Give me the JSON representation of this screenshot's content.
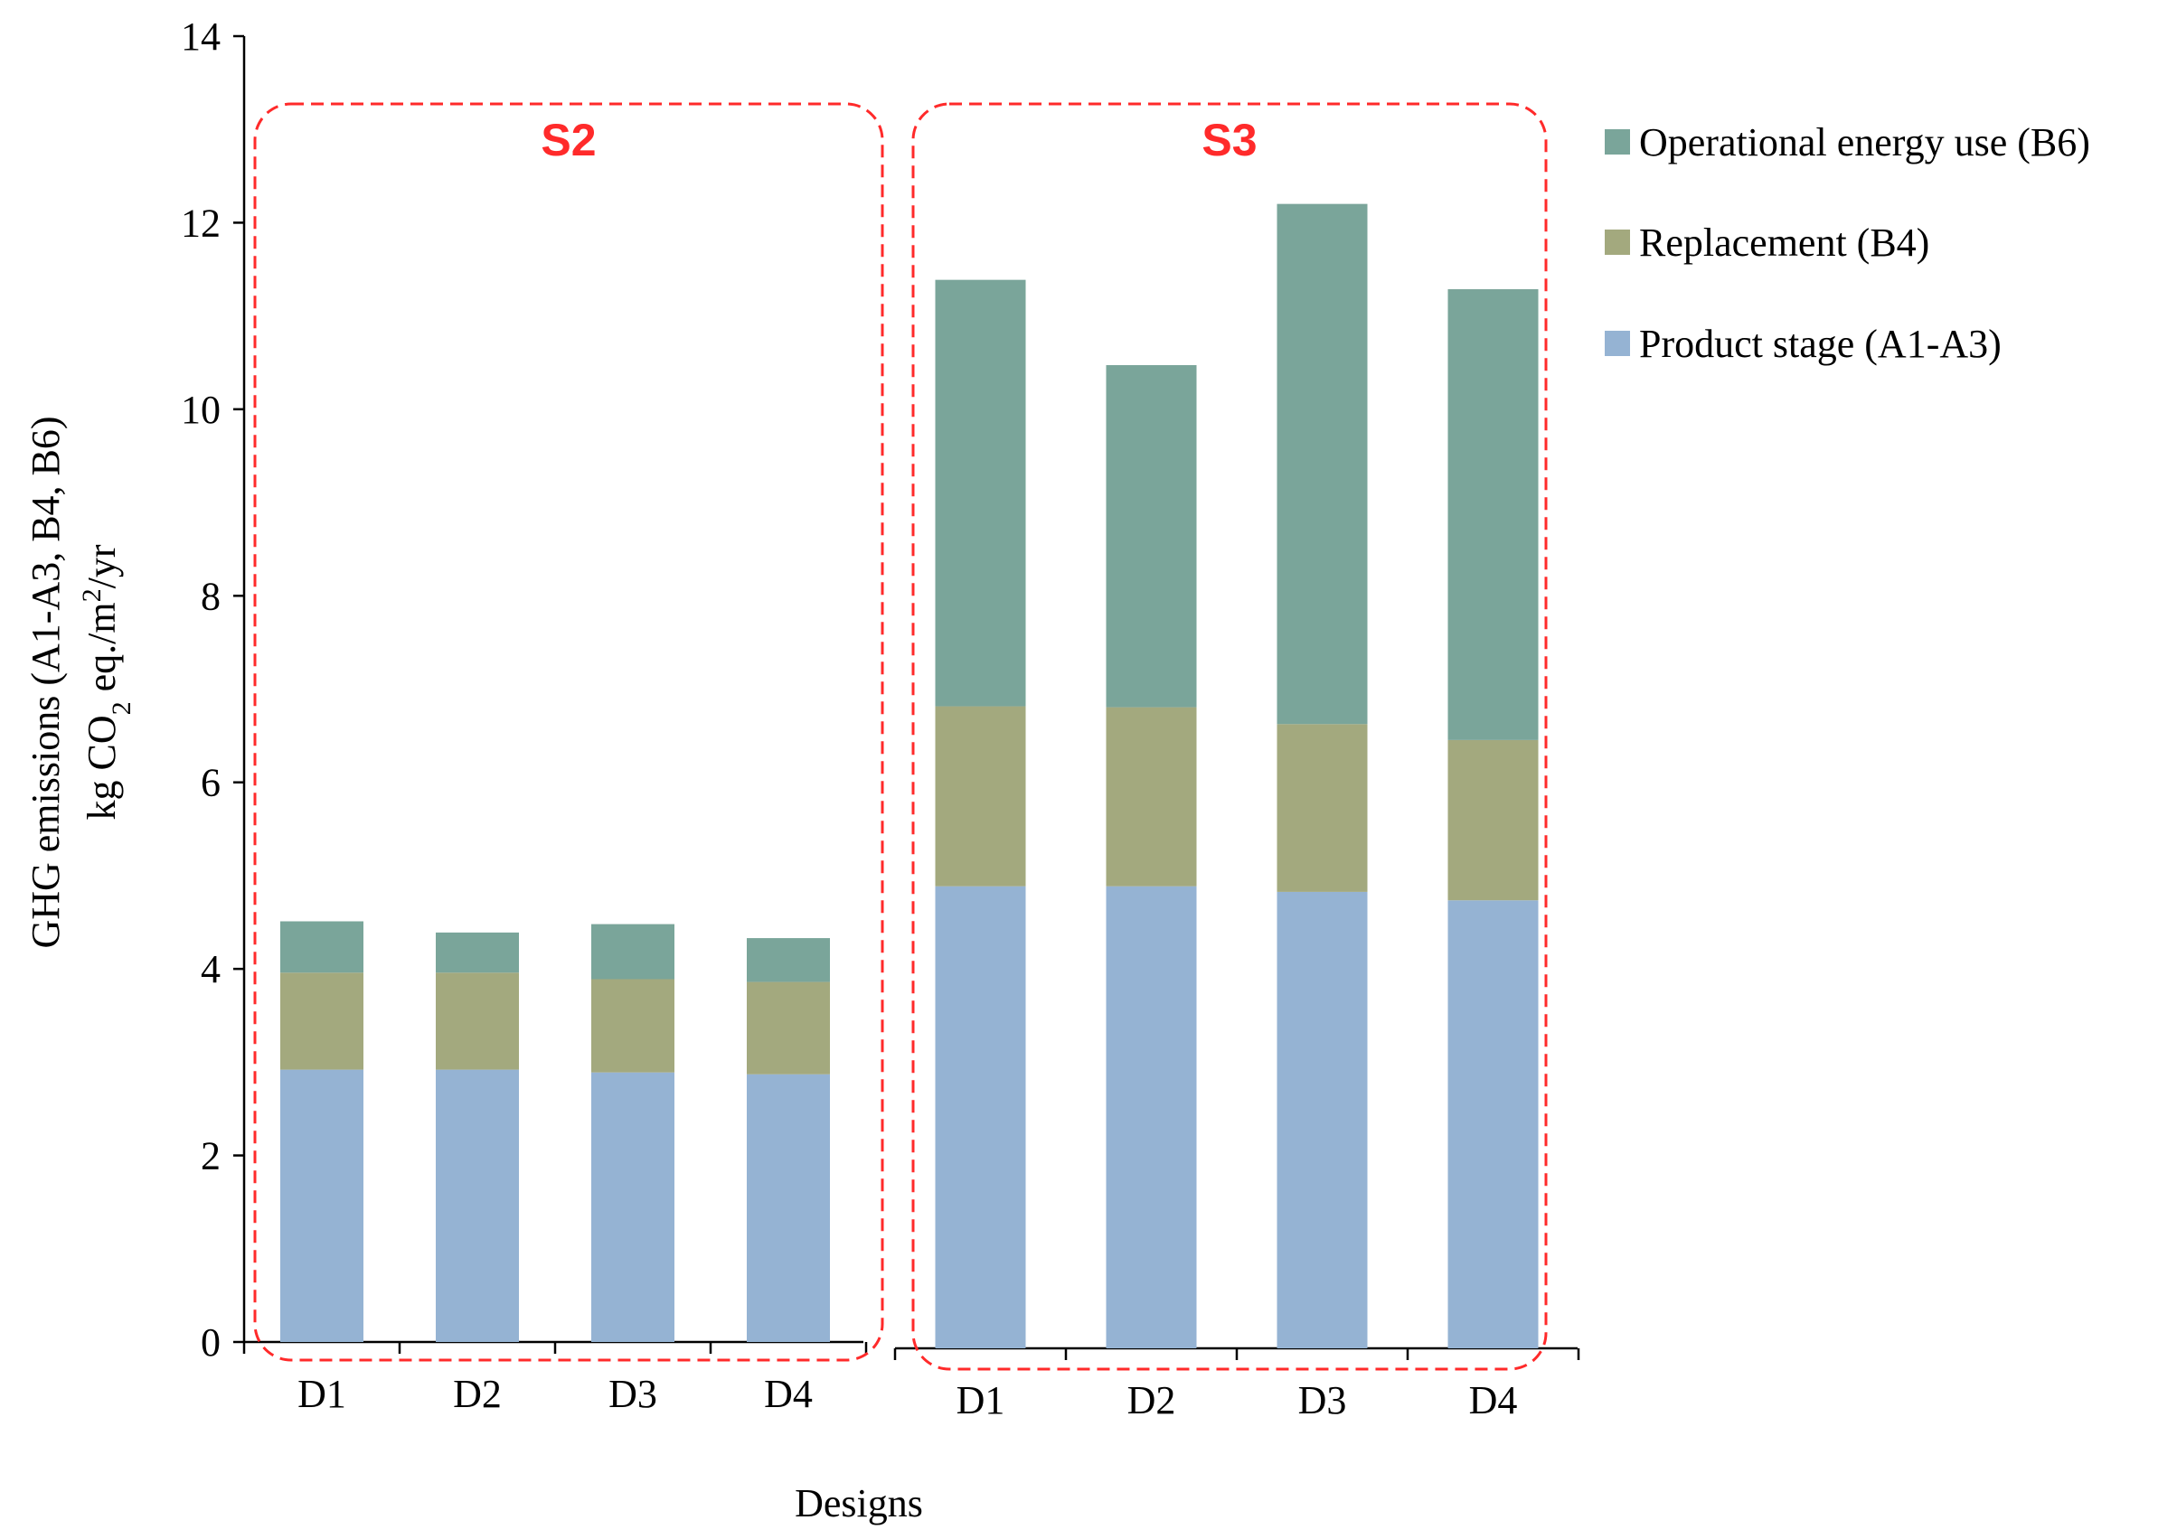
{
  "colors": {
    "product_stage": "#95b3d3",
    "replacement": "#a3a97e",
    "operational": "#7aa59a",
    "group_box": "#ff2a2a"
  },
  "chart_data": {
    "type": "bar",
    "stacked": true,
    "title": "",
    "xlabel": "Designs",
    "ylabel_line1": "GHG emissions (A1-A3, B4, B6)",
    "ylabel_line2_parts": [
      "kg CO",
      "2",
      " eq./m",
      "2",
      "/yr"
    ],
    "ylim": [
      0,
      14
    ],
    "yticks": [
      "0",
      "2",
      "4",
      "6",
      "8",
      "10",
      "12",
      "14"
    ],
    "grid": false,
    "legend_position": "right",
    "panels": [
      {
        "name": "S2",
        "categories": [
          "D1",
          "D2",
          "D3",
          "D4"
        ],
        "series": [
          {
            "name": "Product stage (A1-A3)",
            "values": [
              2.92,
              2.92,
              2.89,
              2.87
            ]
          },
          {
            "name": "Replacement (B4)",
            "values": [
              1.04,
              1.04,
              1.0,
              0.99
            ]
          },
          {
            "name": "Operational energy use (B6)",
            "values": [
              0.55,
              0.43,
              0.59,
              0.47
            ]
          }
        ]
      },
      {
        "name": "S3",
        "categories": [
          "D1",
          "D2",
          "D3",
          "D4"
        ],
        "series": [
          {
            "name": "Product stage (A1-A3)",
            "values": [
              4.93,
              4.93,
              4.87,
              4.78
            ]
          },
          {
            "name": "Replacement (B4)",
            "values": [
              1.92,
              1.91,
              1.79,
              1.71
            ]
          },
          {
            "name": "Operational energy use (B6)",
            "values": [
              4.55,
              3.65,
              5.55,
              4.81
            ]
          }
        ]
      }
    ],
    "legend": [
      {
        "label": "Operational energy use (B6)",
        "series": "operational"
      },
      {
        "label": "Replacement (B4)",
        "series": "replacement"
      },
      {
        "label": "Product stage (A1-A3)",
        "series": "product_stage"
      }
    ]
  }
}
